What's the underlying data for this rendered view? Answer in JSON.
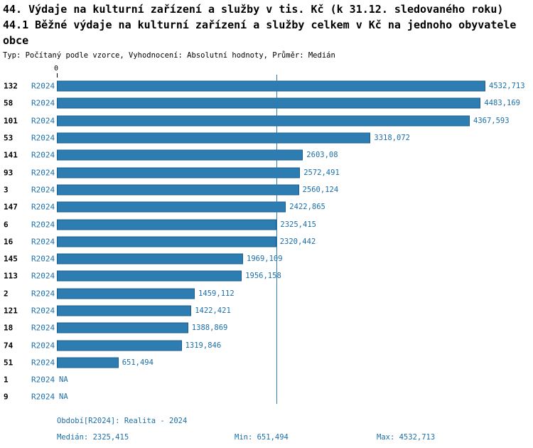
{
  "header": {
    "title_line1": "44. Výdaje na kulturní zařízení a služby v tis. Kč (k 31.12. sledovaného roku)",
    "title_line2": "44.1 Běžné výdaje na kulturní zařízení a služby celkem v Kč na jednoho obyvatele obce",
    "subtitle": "Typ: Počítaný podle vzorce, Vyhodnocení: Absolutní hodnoty, Průměr: Medián"
  },
  "chart_data": {
    "type": "bar",
    "orientation": "horizontal",
    "title": "44.1 Běžné výdaje na kulturní zařízení a služby celkem v Kč na jednoho obyvatele obce",
    "xlabel": "",
    "ylabel": "",
    "xlim": [
      0,
      4532.713
    ],
    "grid": false,
    "legend": false,
    "axis": {
      "zero_label": "0",
      "xmax": 4532.713
    },
    "median_line_value": 2325.415,
    "bar_color": "#2d7db3",
    "text_color": "#1b6fa8",
    "rows": [
      {
        "id": "132",
        "period": "R2024",
        "value": 4532.713,
        "label": "4532,713"
      },
      {
        "id": "58",
        "period": "R2024",
        "value": 4483.169,
        "label": "4483,169"
      },
      {
        "id": "101",
        "period": "R2024",
        "value": 4367.593,
        "label": "4367,593"
      },
      {
        "id": "53",
        "period": "R2024",
        "value": 3318.072,
        "label": "3318,072"
      },
      {
        "id": "141",
        "period": "R2024",
        "value": 2603.08,
        "label": "2603,08"
      },
      {
        "id": "93",
        "period": "R2024",
        "value": 2572.491,
        "label": "2572,491"
      },
      {
        "id": "3",
        "period": "R2024",
        "value": 2560.124,
        "label": "2560,124"
      },
      {
        "id": "147",
        "period": "R2024",
        "value": 2422.865,
        "label": "2422,865"
      },
      {
        "id": "6",
        "period": "R2024",
        "value": 2325.415,
        "label": "2325,415"
      },
      {
        "id": "16",
        "period": "R2024",
        "value": 2320.442,
        "label": "2320,442"
      },
      {
        "id": "145",
        "period": "R2024",
        "value": 1969.109,
        "label": "1969,109"
      },
      {
        "id": "113",
        "period": "R2024",
        "value": 1956.158,
        "label": "1956,158"
      },
      {
        "id": "2",
        "period": "R2024",
        "value": 1459.112,
        "label": "1459,112"
      },
      {
        "id": "121",
        "period": "R2024",
        "value": 1422.421,
        "label": "1422,421"
      },
      {
        "id": "18",
        "period": "R2024",
        "value": 1388.869,
        "label": "1388,869"
      },
      {
        "id": "74",
        "period": "R2024",
        "value": 1319.846,
        "label": "1319,846"
      },
      {
        "id": "51",
        "period": "R2024",
        "value": 651.494,
        "label": "651,494"
      },
      {
        "id": "1",
        "period": "R2024",
        "value": null,
        "label": "NA"
      },
      {
        "id": "9",
        "period": "R2024",
        "value": null,
        "label": "NA"
      }
    ]
  },
  "footer": {
    "period": "Období[R2024]: Realita - 2024",
    "median": "Medián: 2325,415",
    "min": "Min: 651,494",
    "max": "Max: 4532,713"
  }
}
